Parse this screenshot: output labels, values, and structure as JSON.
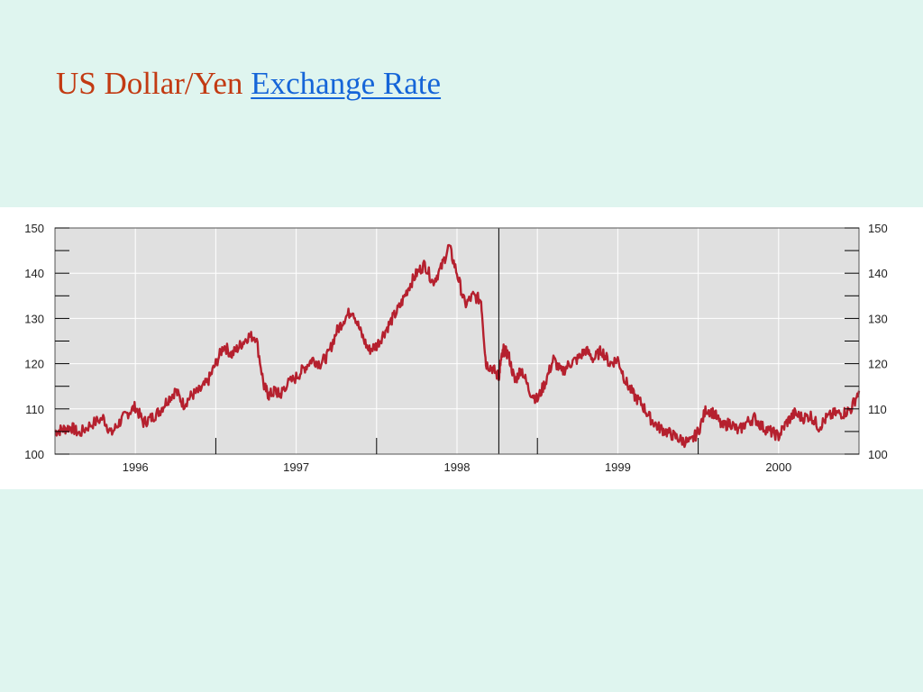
{
  "slide": {
    "title_text": "US Dollar/Yen",
    "title_link": "Exchange Rate",
    "title_color": "#c23a12",
    "link_color": "#1565d8",
    "background": "#dff5ef"
  },
  "chart_data": {
    "type": "line",
    "title": "",
    "xlabel": "",
    "ylabel": "",
    "x_range": [
      1995.5,
      2000.5
    ],
    "ylim": [
      100,
      150
    ],
    "y_ticks": [
      100,
      110,
      120,
      130,
      140,
      150
    ],
    "y_minor_ticks": [
      105,
      115,
      125,
      135,
      145
    ],
    "x_tick_labels": [
      "1996",
      "1997",
      "1998",
      "1999",
      "2000"
    ],
    "x_tick_positions": [
      1996,
      1997,
      1998,
      1999,
      2000
    ],
    "x_half_year_ticks": [
      1996.5,
      1997.5,
      1998.5,
      1999.5
    ],
    "x_marker_year": 1998.26,
    "grid": true,
    "plot_background": "#e0e0e0",
    "series": [
      {
        "color": "#b5202e",
        "x": [
          1995.5,
          1995.55,
          1995.6,
          1995.65,
          1995.72,
          1995.8,
          1995.85,
          1995.9,
          1995.95,
          1996.0,
          1996.05,
          1996.1,
          1996.15,
          1996.2,
          1996.25,
          1996.3,
          1996.35,
          1996.4,
          1996.45,
          1996.5,
          1996.55,
          1996.6,
          1996.65,
          1996.7,
          1996.75,
          1996.8,
          1996.83,
          1996.87,
          1996.9,
          1996.93,
          1997.0,
          1997.05,
          1997.1,
          1997.15,
          1997.2,
          1997.25,
          1997.3,
          1997.35,
          1997.4,
          1997.45,
          1997.5,
          1997.55,
          1997.6,
          1997.65,
          1997.7,
          1997.75,
          1997.8,
          1997.85,
          1997.9,
          1997.95,
          1998.0,
          1998.05,
          1998.1,
          1998.15,
          1998.18,
          1998.22,
          1998.26,
          1998.27,
          1998.29,
          1998.32,
          1998.36,
          1998.4,
          1998.45,
          1998.5,
          1998.55,
          1998.6,
          1998.65,
          1998.7,
          1998.75,
          1998.8,
          1998.85,
          1998.9,
          1998.95,
          1999.0,
          1999.05,
          1999.1,
          1999.15,
          1999.2,
          1999.25,
          1999.3,
          1999.35,
          1999.4,
          1999.45,
          1999.5,
          1999.55,
          1999.6,
          1999.65,
          1999.7,
          1999.75,
          1999.8,
          1999.85,
          1999.9,
          1999.95,
          2000.0,
          2000.05,
          2000.1,
          2000.15,
          2000.2,
          2000.25,
          2000.3,
          2000.35,
          2000.4,
          2000.45,
          2000.5
        ],
        "y": [
          105,
          105.5,
          106,
          104.5,
          106.5,
          108,
          104.5,
          107,
          109,
          110.5,
          107,
          108,
          109.5,
          112,
          114,
          111,
          113,
          114,
          116,
          120,
          124,
          122,
          124,
          126,
          126,
          115,
          113,
          114,
          113,
          115,
          117,
          119,
          121,
          120,
          122,
          127,
          130,
          132,
          127,
          123,
          124,
          127,
          130,
          133,
          137,
          140,
          142,
          138,
          141,
          146,
          140,
          133,
          135,
          134,
          120,
          119,
          117,
          120,
          123,
          122,
          116,
          119,
          114,
          112,
          116,
          121,
          118,
          120,
          121,
          123,
          121,
          123,
          120,
          121,
          116,
          113,
          111,
          108,
          106,
          105,
          104,
          103,
          102.5,
          105,
          110,
          109,
          106,
          107,
          105,
          107,
          108,
          106,
          105,
          104,
          107,
          109,
          108,
          108.5,
          106,
          108,
          109,
          109,
          110,
          114
        ]
      }
    ]
  }
}
